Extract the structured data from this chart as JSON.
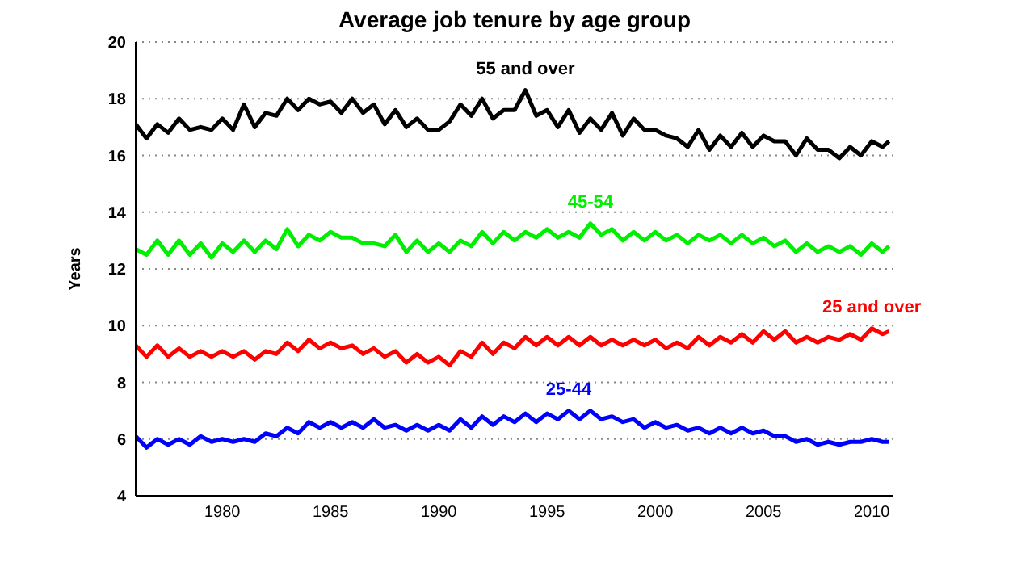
{
  "chart_data": {
    "type": "line",
    "title": "Average job tenure by age group",
    "ylabel": "Years",
    "x": [
      1976,
      1976.5,
      1977,
      1977.5,
      1978,
      1978.5,
      1979,
      1979.5,
      1980,
      1980.5,
      1981,
      1981.5,
      1982,
      1982.5,
      1983,
      1983.5,
      1984,
      1984.5,
      1985,
      1985.5,
      1986,
      1986.5,
      1987,
      1987.5,
      1988,
      1988.5,
      1989,
      1989.5,
      1990,
      1990.5,
      1991,
      1991.5,
      1992,
      1992.5,
      1993,
      1993.5,
      1994,
      1994.5,
      1995,
      1995.5,
      1996,
      1996.5,
      1997,
      1997.5,
      1998,
      1998.5,
      1999,
      1999.5,
      2000,
      2000.5,
      2001,
      2001.5,
      2002,
      2002.5,
      2003,
      2003.5,
      2004,
      2004.5,
      2005,
      2005.5,
      2006,
      2006.5,
      2007,
      2007.5,
      2008,
      2008.5,
      2009,
      2009.5,
      2010,
      2010.5,
      2010.8
    ],
    "series": [
      {
        "name": "55 and over",
        "color": "#000000",
        "values": [
          17.1,
          16.6,
          17.1,
          16.8,
          17.3,
          16.9,
          17.0,
          16.9,
          17.3,
          16.9,
          17.8,
          17.0,
          17.5,
          17.4,
          18.0,
          17.6,
          18.0,
          17.8,
          17.9,
          17.5,
          18.0,
          17.5,
          17.8,
          17.1,
          17.6,
          17.0,
          17.3,
          16.9,
          16.9,
          17.2,
          17.8,
          17.4,
          18.0,
          17.3,
          17.6,
          17.6,
          18.3,
          17.4,
          17.6,
          17.0,
          17.6,
          16.8,
          17.3,
          16.9,
          17.5,
          16.7,
          17.3,
          16.9,
          16.9,
          16.7,
          16.6,
          16.3,
          16.9,
          16.2,
          16.7,
          16.3,
          16.8,
          16.3,
          16.7,
          16.5,
          16.5,
          16.0,
          16.6,
          16.2,
          16.2,
          15.9,
          16.3,
          16.0,
          16.5,
          16.3,
          16.5
        ]
      },
      {
        "name": "45-54",
        "color": "#00ee00",
        "values": [
          12.7,
          12.5,
          13.0,
          12.5,
          13.0,
          12.5,
          12.9,
          12.4,
          12.9,
          12.6,
          13.0,
          12.6,
          13.0,
          12.7,
          13.4,
          12.8,
          13.2,
          13.0,
          13.3,
          13.1,
          13.1,
          12.9,
          12.9,
          12.8,
          13.2,
          12.6,
          13.0,
          12.6,
          12.9,
          12.6,
          13.0,
          12.8,
          13.3,
          12.9,
          13.3,
          13.0,
          13.3,
          13.1,
          13.4,
          13.1,
          13.3,
          13.1,
          13.6,
          13.2,
          13.4,
          13.0,
          13.3,
          13.0,
          13.3,
          13.0,
          13.2,
          12.9,
          13.2,
          13.0,
          13.2,
          12.9,
          13.2,
          12.9,
          13.1,
          12.8,
          13.0,
          12.6,
          12.9,
          12.6,
          12.8,
          12.6,
          12.8,
          12.5,
          12.9,
          12.6,
          12.8
        ]
      },
      {
        "name": "25 and over",
        "color": "#ff0000",
        "values": [
          9.3,
          8.9,
          9.3,
          8.9,
          9.2,
          8.9,
          9.1,
          8.9,
          9.1,
          8.9,
          9.1,
          8.8,
          9.1,
          9.0,
          9.4,
          9.1,
          9.5,
          9.2,
          9.4,
          9.2,
          9.3,
          9.0,
          9.2,
          8.9,
          9.1,
          8.7,
          9.0,
          8.7,
          8.9,
          8.6,
          9.1,
          8.9,
          9.4,
          9.0,
          9.4,
          9.2,
          9.6,
          9.3,
          9.6,
          9.3,
          9.6,
          9.3,
          9.6,
          9.3,
          9.5,
          9.3,
          9.5,
          9.3,
          9.5,
          9.2,
          9.4,
          9.2,
          9.6,
          9.3,
          9.6,
          9.4,
          9.7,
          9.4,
          9.8,
          9.5,
          9.8,
          9.4,
          9.6,
          9.4,
          9.6,
          9.5,
          9.7,
          9.5,
          9.9,
          9.7,
          9.8
        ]
      },
      {
        "name": "25-44",
        "color": "#0000ff",
        "values": [
          6.1,
          5.7,
          6.0,
          5.8,
          6.0,
          5.8,
          6.1,
          5.9,
          6.0,
          5.9,
          6.0,
          5.9,
          6.2,
          6.1,
          6.4,
          6.2,
          6.6,
          6.4,
          6.6,
          6.4,
          6.6,
          6.4,
          6.7,
          6.4,
          6.5,
          6.3,
          6.5,
          6.3,
          6.5,
          6.3,
          6.7,
          6.4,
          6.8,
          6.5,
          6.8,
          6.6,
          6.9,
          6.6,
          6.9,
          6.7,
          7.0,
          6.7,
          7.0,
          6.7,
          6.8,
          6.6,
          6.7,
          6.4,
          6.6,
          6.4,
          6.5,
          6.3,
          6.4,
          6.2,
          6.4,
          6.2,
          6.4,
          6.2,
          6.3,
          6.1,
          6.1,
          5.9,
          6.0,
          5.8,
          5.9,
          5.8,
          5.9,
          5.9,
          6.0,
          5.9,
          5.9
        ]
      }
    ],
    "xlim": [
      1976,
      2011
    ],
    "xticks": [
      1980,
      1985,
      1990,
      1995,
      2000,
      2005,
      2010
    ],
    "ylim": [
      4,
      20
    ],
    "yticks": [
      4,
      6,
      8,
      10,
      12,
      14,
      16,
      18,
      20
    ],
    "grid": "y",
    "legend": false,
    "marker": "none",
    "line_style": "solid"
  }
}
